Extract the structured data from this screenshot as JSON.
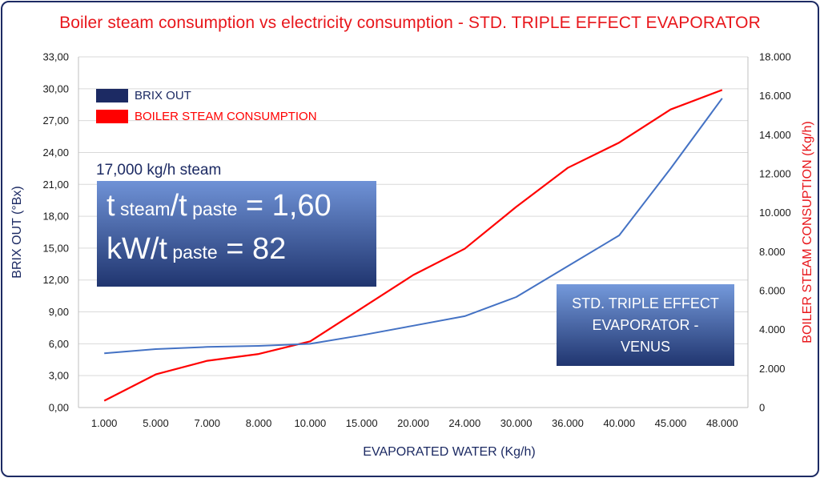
{
  "chart_data": {
    "type": "line",
    "title": "Boiler steam consumption vs electricity consumption - STD. TRIPLE EFFECT EVAPORATOR",
    "xlabel": "EVAPORATED WATER  (Kg/h)",
    "ylabel_left": "BRIX OUT (°Bx)",
    "ylabel_right": "BOILER STEAM CONSUPTION  (Kg/h)",
    "categories": [
      "1.000",
      "5.000",
      "7.000",
      "8.000",
      "10.000",
      "15.000",
      "20.000",
      "24.000",
      "30.000",
      "36.000",
      "40.000",
      "45.000",
      "48.000"
    ],
    "y_left_ticks": [
      "0,00",
      "3,00",
      "6,00",
      "9,00",
      "12,00",
      "15,00",
      "18,00",
      "21,00",
      "24,00",
      "27,00",
      "30,00",
      "33,00"
    ],
    "y_right_ticks": [
      "0",
      "2.000",
      "4.000",
      "6.000",
      "8.000",
      "10.000",
      "12.000",
      "14.000",
      "16.000",
      "18.000"
    ],
    "ylim_left": [
      0,
      33
    ],
    "ylim_right": [
      0,
      18000
    ],
    "series": [
      {
        "name": "BRIX OUT",
        "axis": "left",
        "color": "#4472c4",
        "values": [
          5.1,
          5.5,
          5.7,
          5.8,
          6.0,
          6.8,
          7.7,
          8.6,
          10.4,
          13.3,
          16.2,
          22.5,
          29.1
        ]
      },
      {
        "name": "BOILER STEAM CONSUMPTION",
        "axis": "right",
        "color": "#ff0000",
        "values": [
          350,
          1700,
          2400,
          2750,
          3400,
          5100,
          6800,
          8150,
          10300,
          12300,
          13600,
          15300,
          16300
        ]
      }
    ],
    "legend": [
      {
        "label": "BRIX OUT",
        "color": "#1c2a63"
      },
      {
        "label": "BOILER STEAM CONSUMPTION",
        "color": "#ff0000"
      }
    ],
    "legend_position": "top-left",
    "grid": true,
    "annotations": {
      "steam_note": "17,000 kg/h steam",
      "ratio_box": {
        "line1_a": "t",
        "line1_b": " steam",
        "line1_c": "/t",
        "line1_d": " paste",
        "line1_e": " = 1,60",
        "line2_a": "kW/t",
        "line2_b": " paste",
        "line2_c": " = 82"
      },
      "venus_box": [
        "STD. TRIPLE EFFECT",
        "EVAPORATOR -",
        "VENUS"
      ]
    }
  }
}
